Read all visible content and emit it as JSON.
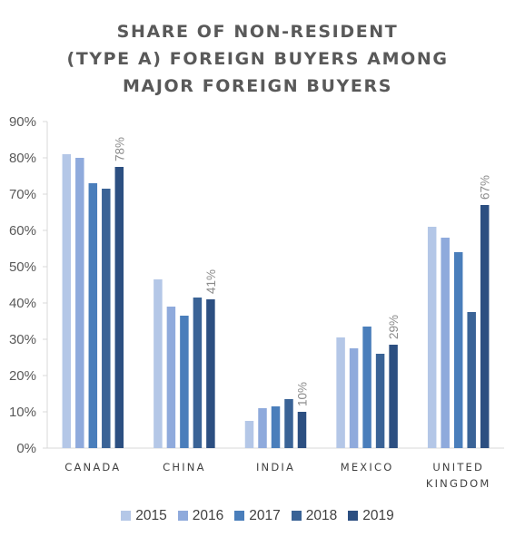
{
  "title_lines": [
    "SHARE OF NON-RESIDENT",
    "(TYPE A) FOREIGN BUYERS AMONG",
    "MAJOR FOREIGN BUYERS"
  ],
  "colors": [
    "#b4c7e7",
    "#8faadc",
    "#4a7ebb",
    "#3a6396",
    "#2c4f81"
  ],
  "chart_data": {
    "type": "bar",
    "title": "SHARE OF NON-RESIDENT (TYPE A) FOREIGN BUYERS AMONG MAJOR FOREIGN BUYERS",
    "categories": [
      [
        "CANADA"
      ],
      [
        "CHINA"
      ],
      [
        "INDIA"
      ],
      [
        "MEXICO"
      ],
      [
        "UNITED",
        "KINGDOM"
      ]
    ],
    "series": [
      {
        "name": "2015",
        "values": [
          81,
          46.5,
          7.5,
          30.5,
          61
        ]
      },
      {
        "name": "2016",
        "values": [
          80,
          39,
          11,
          27.5,
          58
        ]
      },
      {
        "name": "2017",
        "values": [
          73,
          36.5,
          11.5,
          33.5,
          54
        ]
      },
      {
        "name": "2018",
        "values": [
          71.5,
          41.5,
          13.5,
          26,
          37.5
        ]
      },
      {
        "name": "2019",
        "values": [
          77.5,
          41,
          10,
          28.5,
          67
        ]
      }
    ],
    "data_labels": [
      "78%",
      "41%",
      "10%",
      "29%",
      "67%"
    ],
    "y_ticks": [
      "0%",
      "10%",
      "20%",
      "30%",
      "40%",
      "50%",
      "60%",
      "70%",
      "80%",
      "90%"
    ],
    "ylim": [
      0,
      90
    ],
    "xlabel": "",
    "ylabel": "",
    "grid": false,
    "legend_position": "bottom"
  }
}
